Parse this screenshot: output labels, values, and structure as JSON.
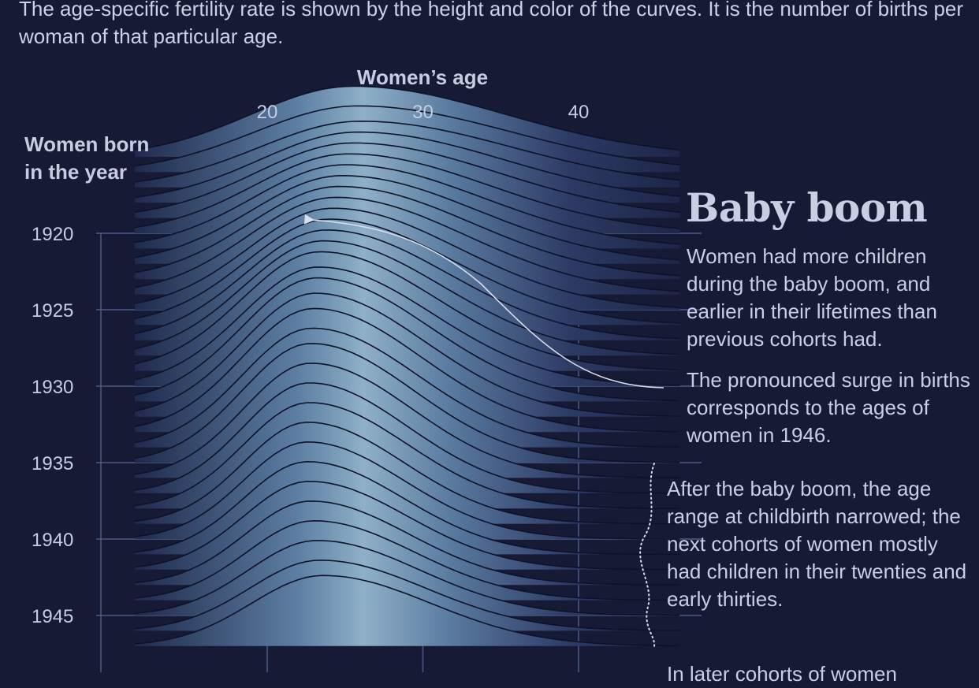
{
  "intro": "The age-specific fertility rate is shown by the height and color of the curves. It is the number of births per woman of that particular age.",
  "annotations": {
    "title": "Baby boom",
    "text1": "Women had more children during the baby boom, and earlier in their lifetimes than previous cohorts had.",
    "text2": "The pronounced surge in births corresponds to the ages of women in 1946.",
    "text3": "After the baby boom, the age range at childbirth narrowed; the next cohorts of women mostly had children in their twenties and early thirties.",
    "text4": "In later cohorts of women"
  },
  "colors": {
    "background": "#161a35",
    "ridge_low": "#27355c",
    "ridge_high": "#8fb0c8",
    "curve_line": "#0e1228",
    "gridline": "#4a5a85",
    "text": "#c5cde0"
  },
  "chart_data": {
    "type": "ridgeline",
    "title": "",
    "xlabel": "Women’s age",
    "ylabel": "Women born in the year",
    "x_ticks": [
      20,
      30,
      40
    ],
    "y_ticks": [
      1920,
      1925,
      1930,
      1935,
      1940,
      1945
    ],
    "x_range": [
      10,
      50
    ],
    "y_range": [
      1915,
      1947
    ],
    "grid": true,
    "series": [
      {
        "cohort": 1915,
        "peak_age": 25.5,
        "peak_rate": 0.16,
        "width": 6.5
      },
      {
        "cohort": 1916,
        "peak_age": 25.8,
        "peak_rate": 0.15,
        "width": 6.6
      },
      {
        "cohort": 1917,
        "peak_age": 26.0,
        "peak_rate": 0.15,
        "width": 6.5
      },
      {
        "cohort": 1918,
        "peak_age": 25.8,
        "peak_rate": 0.16,
        "width": 6.3
      },
      {
        "cohort": 1919,
        "peak_age": 25.5,
        "peak_rate": 0.17,
        "width": 6.2
      },
      {
        "cohort": 1920,
        "peak_age": 25.2,
        "peak_rate": 0.18,
        "width": 6.0
      },
      {
        "cohort": 1921,
        "peak_age": 25.0,
        "peak_rate": 0.19,
        "width": 5.9
      },
      {
        "cohort": 1922,
        "peak_age": 24.8,
        "peak_rate": 0.2,
        "width": 5.8
      },
      {
        "cohort": 1923,
        "peak_age": 24.6,
        "peak_rate": 0.21,
        "width": 5.7
      },
      {
        "cohort": 1924,
        "peak_age": 24.4,
        "peak_rate": 0.22,
        "width": 5.6
      },
      {
        "cohort": 1925,
        "peak_age": 24.2,
        "peak_rate": 0.23,
        "width": 5.4
      },
      {
        "cohort": 1926,
        "peak_age": 24.0,
        "peak_rate": 0.24,
        "width": 5.3
      },
      {
        "cohort": 1927,
        "peak_age": 23.8,
        "peak_rate": 0.25,
        "width": 5.2
      },
      {
        "cohort": 1928,
        "peak_age": 23.6,
        "peak_rate": 0.26,
        "width": 5.1
      },
      {
        "cohort": 1929,
        "peak_age": 23.4,
        "peak_rate": 0.27,
        "width": 5.0
      },
      {
        "cohort": 1930,
        "peak_age": 23.3,
        "peak_rate": 0.27,
        "width": 4.9
      },
      {
        "cohort": 1931,
        "peak_age": 23.2,
        "peak_rate": 0.28,
        "width": 4.8
      },
      {
        "cohort": 1932,
        "peak_age": 23.1,
        "peak_rate": 0.28,
        "width": 4.7
      },
      {
        "cohort": 1933,
        "peak_age": 23.0,
        "peak_rate": 0.28,
        "width": 4.6
      },
      {
        "cohort": 1934,
        "peak_age": 22.9,
        "peak_rate": 0.27,
        "width": 4.5
      },
      {
        "cohort": 1935,
        "peak_age": 22.8,
        "peak_rate": 0.27,
        "width": 4.4
      },
      {
        "cohort": 1936,
        "peak_age": 22.8,
        "peak_rate": 0.26,
        "width": 4.3
      },
      {
        "cohort": 1937,
        "peak_age": 22.7,
        "peak_rate": 0.25,
        "width": 4.2
      },
      {
        "cohort": 1938,
        "peak_age": 22.7,
        "peak_rate": 0.24,
        "width": 4.2
      },
      {
        "cohort": 1939,
        "peak_age": 22.6,
        "peak_rate": 0.23,
        "width": 4.1
      },
      {
        "cohort": 1940,
        "peak_age": 22.6,
        "peak_rate": 0.22,
        "width": 4.1
      },
      {
        "cohort": 1941,
        "peak_age": 22.6,
        "peak_rate": 0.21,
        "width": 4.1
      },
      {
        "cohort": 1942,
        "peak_age": 22.7,
        "peak_rate": 0.2,
        "width": 4.2
      },
      {
        "cohort": 1943,
        "peak_age": 22.8,
        "peak_rate": 0.19,
        "width": 4.2
      },
      {
        "cohort": 1944,
        "peak_age": 23.0,
        "peak_rate": 0.18,
        "width": 4.3
      },
      {
        "cohort": 1945,
        "peak_age": 23.2,
        "peak_rate": 0.17,
        "width": 4.4
      },
      {
        "cohort": 1946,
        "peak_age": 23.4,
        "peak_rate": 0.16,
        "width": 4.5
      },
      {
        "cohort": 1947,
        "peak_age": 23.6,
        "peak_rate": 0.16,
        "width": 4.6
      }
    ]
  }
}
